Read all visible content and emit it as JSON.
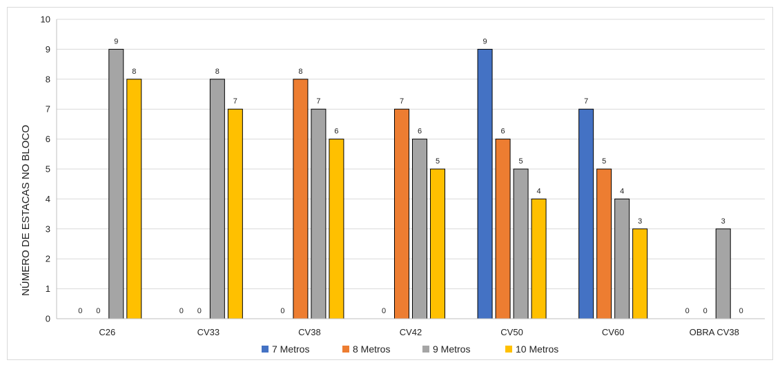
{
  "chart_data": {
    "type": "bar",
    "title": "",
    "xlabel": "",
    "ylabel": "NÚMERO DE ESTACAS NO BLOCO",
    "ylim": [
      0,
      10
    ],
    "yticks": [
      0,
      1,
      2,
      3,
      4,
      5,
      6,
      7,
      8,
      9,
      10
    ],
    "grid": true,
    "legend_position": "bottom",
    "categories": [
      "C26",
      "CV33",
      "CV38",
      "CV42",
      "CV50",
      "CV60",
      "OBRA CV38"
    ],
    "series": [
      {
        "name": "7 Metros",
        "color": "#4472C4",
        "values": [
          0,
          0,
          0,
          0,
          9,
          7,
          0
        ]
      },
      {
        "name": "8 Metros",
        "color": "#ED7D31",
        "values": [
          0,
          0,
          8,
          7,
          6,
          5,
          0
        ]
      },
      {
        "name": "9 Metros",
        "color": "#A5A5A5",
        "values": [
          9,
          8,
          7,
          6,
          5,
          4,
          3
        ]
      },
      {
        "name": "10 Metros",
        "color": "#FFC000",
        "values": [
          8,
          7,
          6,
          5,
          4,
          3,
          0
        ]
      }
    ],
    "data_labels": [
      [
        "0",
        "0",
        "9",
        "8"
      ],
      [
        "0",
        "0",
        "8",
        "7"
      ],
      [
        "0",
        "8",
        "7",
        "6"
      ],
      [
        "0",
        "7",
        "6",
        "5"
      ],
      [
        "9",
        "6",
        "5",
        "4"
      ],
      [
        "7",
        "5",
        "4",
        "3"
      ],
      [
        "0",
        "0",
        "3",
        "0"
      ]
    ]
  }
}
